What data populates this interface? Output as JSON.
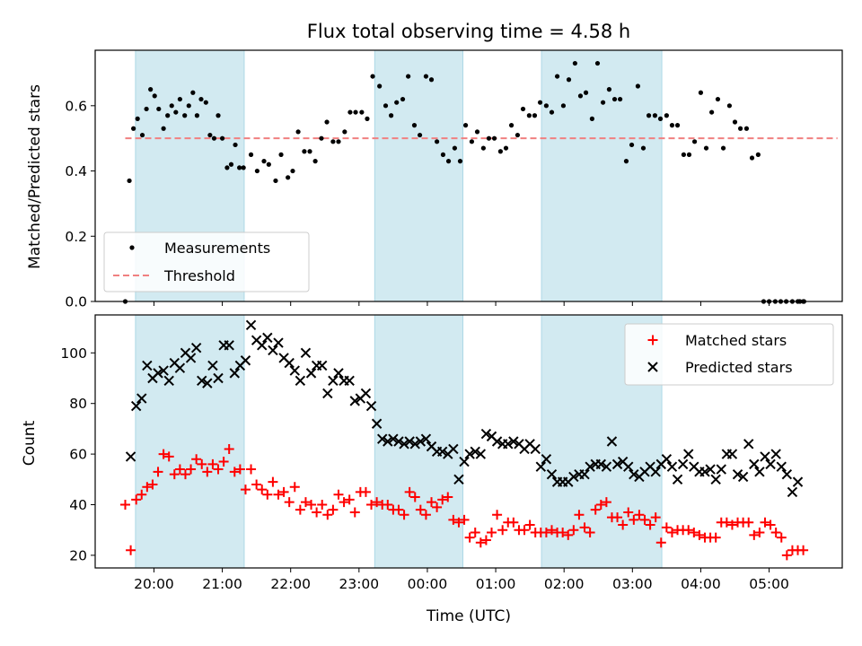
{
  "chart_data": {
    "title": "Flux total observing time = 4.58 h",
    "xlabel": "Time (UTC)",
    "x_unit": "hours, UTC (values past 24 are after midnight)",
    "x_ticks": [
      "20:00",
      "21:00",
      "22:00",
      "23:00",
      "00:00",
      "01:00",
      "02:00",
      "03:00",
      "04:00",
      "05:00"
    ],
    "x_tick_values": [
      20,
      21,
      22,
      23,
      24,
      25,
      26,
      27,
      28,
      29
    ],
    "xlim": [
      19.14,
      30.07
    ],
    "highlight_bands": [
      [
        19.73,
        21.32
      ],
      [
        23.23,
        24.52
      ],
      [
        25.67,
        27.43
      ]
    ],
    "highlight_color": "#add8e6",
    "panels": [
      {
        "type": "scatter",
        "ylabel": "Matched/Predicted stars",
        "ylim": [
          0,
          0.77
        ],
        "y_ticks": [
          0.0,
          0.2,
          0.4,
          0.6
        ],
        "y_tick_labels": [
          "0.0",
          "0.2",
          "0.4",
          "0.6"
        ],
        "legend": "lower-left",
        "threshold": {
          "name": "Threshold",
          "value": 0.5,
          "x_range": [
            19.58,
            30.0
          ],
          "color": "#f08080",
          "style": "dashed"
        },
        "series": [
          {
            "name": "Measurements",
            "marker": "dot",
            "color": "#000000",
            "x": [
              19.58,
              19.64,
              19.7,
              19.76,
              19.83,
              19.89,
              19.95,
              20.01,
              20.07,
              20.14,
              20.2,
              20.26,
              20.32,
              20.38,
              20.45,
              20.51,
              20.57,
              20.63,
              20.69,
              20.76,
              20.82,
              20.88,
              20.94,
              21.0,
              21.07,
              21.13,
              21.19,
              21.25,
              21.31,
              21.42,
              21.51,
              21.61,
              21.68,
              21.78,
              21.86,
              21.96,
              22.03,
              22.11,
              22.2,
              22.28,
              22.36,
              22.45,
              22.53,
              22.62,
              22.7,
              22.79,
              22.87,
              22.95,
              23.04,
              23.12,
              23.2,
              23.3,
              23.39,
              23.47,
              23.55,
              23.64,
              23.72,
              23.81,
              23.89,
              23.98,
              24.06,
              24.14,
              24.23,
              24.31,
              24.4,
              24.48,
              24.56,
              24.65,
              24.73,
              24.82,
              24.9,
              24.98,
              25.07,
              25.15,
              25.23,
              25.32,
              25.4,
              25.49,
              25.57,
              25.65,
              25.74,
              25.82,
              25.9,
              25.99,
              26.07,
              26.16,
              26.24,
              26.32,
              26.41,
              26.49,
              26.57,
              26.66,
              26.74,
              26.82,
              26.91,
              26.99,
              27.08,
              27.16,
              27.24,
              27.33,
              27.41,
              27.5,
              27.58,
              27.66,
              27.75,
              27.83,
              27.91,
              28.0,
              28.08,
              28.16,
              28.25,
              28.33,
              28.42,
              28.5,
              28.58,
              28.67,
              28.75,
              28.84,
              28.92,
              29.0,
              29.09,
              29.17,
              29.25,
              29.34,
              29.42,
              29.5
            ],
            "y": [
              0.0,
              0.37,
              0.53,
              0.56,
              0.51,
              0.59,
              0.65,
              0.63,
              0.59,
              0.53,
              0.57,
              0.6,
              0.58,
              0.62,
              0.57,
              0.6,
              0.64,
              0.57,
              0.62,
              0.61,
              0.51,
              0.5,
              0.57,
              0.5,
              0.41,
              0.42,
              0.48,
              0.41,
              0.41,
              0.45,
              0.4,
              0.43,
              0.42,
              0.37,
              0.45,
              0.38,
              0.4,
              0.52,
              0.46,
              0.46,
              0.43,
              0.5,
              0.55,
              0.49,
              0.49,
              0.52,
              0.58,
              0.58,
              0.58,
              0.56,
              0.69,
              0.66,
              0.6,
              0.57,
              0.61,
              0.62,
              0.69,
              0.54,
              0.51,
              0.69,
              0.68,
              0.49,
              0.45,
              0.43,
              0.47,
              0.43,
              0.54,
              0.49,
              0.52,
              0.47,
              0.5,
              0.5,
              0.46,
              0.47,
              0.54,
              0.51,
              0.59,
              0.57,
              0.57,
              0.61,
              0.6,
              0.58,
              0.69,
              0.6,
              0.68,
              0.73,
              0.63,
              0.64,
              0.56,
              0.73,
              0.61,
              0.65,
              0.62,
              0.62,
              0.43,
              0.48,
              0.66,
              0.47,
              0.57,
              0.57,
              0.56,
              0.57,
              0.54,
              0.54,
              0.45,
              0.45,
              0.49,
              0.64,
              0.47,
              0.58,
              0.62,
              0.47,
              0.6,
              0.55,
              0.53,
              0.53,
              0.44,
              0.45,
              0.0,
              0.0,
              0.0,
              0.0,
              0.0,
              0.0,
              0.0,
              0.0
            ],
            "x_zero_tail": [
              29.45,
              29.51
            ]
          }
        ]
      },
      {
        "type": "scatter",
        "ylabel": "Count",
        "ylim": [
          15,
          115
        ],
        "y_ticks": [
          20,
          40,
          60,
          80,
          100
        ],
        "y_tick_labels": [
          "20",
          "40",
          "60",
          "80",
          "100"
        ],
        "legend": "top-right",
        "series": [
          {
            "name": "Matched stars",
            "marker": "plus",
            "color": "#ff0000",
            "x": [
              19.58,
              19.66,
              19.74,
              19.82,
              19.9,
              19.98,
              20.06,
              20.14,
              20.22,
              20.3,
              20.38,
              20.46,
              20.54,
              20.62,
              20.7,
              20.78,
              20.86,
              20.94,
              21.02,
              21.1,
              21.18,
              21.26,
              21.34,
              21.42,
              21.5,
              21.58,
              21.66,
              21.74,
              21.82,
              21.9,
              21.98,
              22.06,
              22.14,
              22.22,
              22.3,
              22.38,
              22.46,
              22.54,
              22.62,
              22.7,
              22.78,
              22.86,
              22.94,
              23.02,
              23.1,
              23.18,
              23.26,
              23.34,
              23.42,
              23.5,
              23.58,
              23.66,
              23.74,
              23.82,
              23.9,
              23.98,
              24.06,
              24.14,
              24.22,
              24.3,
              24.38,
              24.46,
              24.54,
              24.62,
              24.7,
              24.78,
              24.86,
              24.94,
              25.02,
              25.1,
              25.18,
              25.26,
              25.34,
              25.42,
              25.5,
              25.58,
              25.66,
              25.74,
              25.82,
              25.9,
              25.98,
              26.06,
              26.14,
              26.22,
              26.3,
              26.38,
              26.46,
              26.54,
              26.62,
              26.7,
              26.78,
              26.86,
              26.94,
              27.02,
              27.1,
              27.18,
              27.26,
              27.34,
              27.42,
              27.5,
              27.58,
              27.66,
              27.74,
              27.82,
              27.9,
              27.98,
              28.06,
              28.14,
              28.22,
              28.3,
              28.38,
              28.46,
              28.54,
              28.62,
              28.7,
              28.78,
              28.86,
              28.94,
              29.02,
              29.1,
              29.18,
              29.26,
              29.34,
              29.42,
              29.5
            ],
            "y": [
              40,
              22,
              42,
              44,
              47,
              48,
              53,
              60,
              59,
              52,
              54,
              52,
              54,
              58,
              56,
              53,
              56,
              54,
              57,
              62,
              53,
              54,
              46,
              54,
              48,
              46,
              44,
              49,
              44,
              45,
              41,
              47,
              38,
              41,
              40,
              37,
              40,
              36,
              38,
              44,
              41,
              42,
              37,
              45,
              45,
              40,
              41,
              40,
              40,
              38,
              38,
              36,
              45,
              43,
              38,
              36,
              41,
              39,
              42,
              43,
              34,
              33,
              34,
              27,
              29,
              25,
              26,
              29,
              36,
              30,
              33,
              33,
              30,
              30,
              32,
              29,
              29,
              29,
              30,
              29,
              29,
              28,
              30,
              36,
              31,
              29,
              38,
              40,
              41,
              35,
              35,
              32,
              37,
              34,
              36,
              34,
              32,
              35,
              25,
              31,
              29,
              30,
              30,
              30,
              29,
              28,
              27,
              27,
              27,
              33,
              33,
              32,
              33,
              33,
              33,
              28,
              29,
              33,
              32,
              29,
              27,
              20,
              22,
              22,
              22
            ],
            "x_overrides": {}
          },
          {
            "name": "Predicted stars",
            "marker": "x",
            "color": "#000000",
            "x": [
              19.66,
              19.74,
              19.82,
              19.9,
              19.98,
              20.06,
              20.14,
              20.22,
              20.3,
              20.38,
              20.46,
              20.54,
              20.62,
              20.7,
              20.78,
              20.86,
              20.94,
              21.02,
              21.1,
              21.18,
              21.26,
              21.34,
              21.42,
              21.5,
              21.58,
              21.66,
              21.74,
              21.82,
              21.9,
              21.98,
              22.06,
              22.14,
              22.22,
              22.3,
              22.38,
              22.46,
              22.54,
              22.62,
              22.7,
              22.78,
              22.86,
              22.94,
              23.02,
              23.1,
              23.18,
              23.26,
              23.34,
              23.42,
              23.5,
              23.58,
              23.66,
              23.74,
              23.82,
              23.9,
              23.98,
              24.06,
              24.14,
              24.22,
              24.3,
              24.38,
              24.46,
              24.54,
              24.62,
              24.7,
              24.78,
              24.86,
              24.94,
              25.02,
              25.1,
              25.18,
              25.26,
              25.34,
              25.42,
              25.5,
              25.58,
              25.66,
              25.74,
              25.82,
              25.9,
              25.98,
              26.06,
              26.14,
              26.22,
              26.3,
              26.38,
              26.46,
              26.54,
              26.62,
              26.7,
              26.78,
              26.86,
              26.94,
              27.02,
              27.1,
              27.18,
              27.26,
              27.34,
              27.42,
              27.5,
              27.58,
              27.66,
              27.74,
              27.82,
              27.9,
              27.98,
              28.06,
              28.14,
              28.22,
              28.3,
              28.38,
              28.46,
              28.54,
              28.62,
              28.7,
              28.78,
              28.86,
              28.94,
              29.02,
              29.1,
              29.18,
              29.26,
              29.34,
              29.42
            ],
            "y": [
              59,
              79,
              82,
              95,
              90,
              92,
              93,
              89,
              96,
              94,
              100,
              98,
              102,
              89,
              88,
              95,
              90,
              103,
              103,
              92,
              95,
              97,
              111,
              105,
              103,
              106,
              101,
              104,
              98,
              96,
              93,
              89,
              100,
              92,
              95,
              95,
              84,
              89,
              92,
              89,
              89,
              81,
              82,
              84,
              79,
              72,
              66,
              65,
              66,
              65,
              64,
              65,
              64,
              65,
              66,
              63,
              61,
              61,
              60,
              62,
              50,
              57,
              60,
              61,
              60,
              68,
              67,
              65,
              64,
              64,
              65,
              64,
              62,
              64,
              62,
              55,
              58,
              52,
              49,
              49,
              49,
              51,
              52,
              52,
              55,
              56,
              56,
              55,
              65,
              56,
              57,
              55,
              52,
              51,
              53,
              55,
              53,
              56,
              58,
              55,
              50,
              56,
              60,
              55,
              53,
              53,
              54,
              50,
              54,
              60,
              60,
              52,
              51,
              64,
              56,
              53,
              59,
              56,
              60,
              55,
              52,
              45,
              49
            ],
            "x_overrides": {}
          }
        ]
      }
    ]
  }
}
